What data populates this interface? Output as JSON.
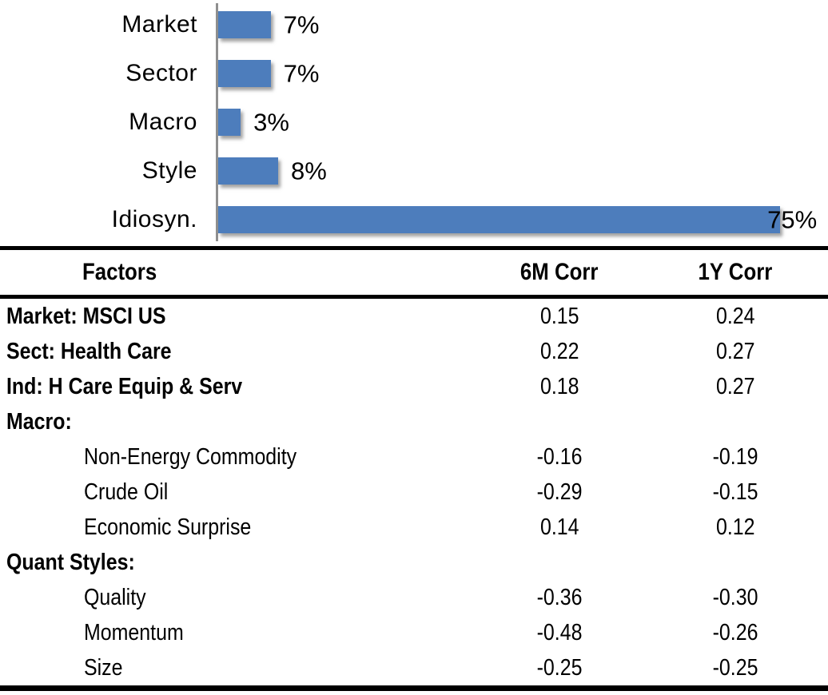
{
  "chart_data": {
    "type": "bar",
    "orientation": "horizontal",
    "title": "",
    "categories": [
      "Market",
      "Sector",
      "Macro",
      "Style",
      "Idiosyn."
    ],
    "values": [
      7,
      7,
      3,
      8,
      75
    ],
    "value_labels": [
      "7%",
      "7%",
      "3%",
      "8%",
      "75%"
    ],
    "unit": "percent",
    "xlim": [
      0,
      80
    ],
    "grid": false,
    "legend": false,
    "bar_color": "#4d7dbc",
    "axis_line_color": "#8f8f8f"
  },
  "table": {
    "headers": [
      "Factors",
      "6M Corr",
      "1Y Corr"
    ],
    "rows": [
      {
        "label": "Market: MSCI US",
        "style": "main",
        "corr_6m": "0.15",
        "corr_1y": "0.24"
      },
      {
        "label": "Sect: Health Care",
        "style": "main",
        "corr_6m": "0.22",
        "corr_1y": "0.27"
      },
      {
        "label": "Ind: H Care Equip & Serv",
        "style": "main",
        "corr_6m": "0.18",
        "corr_1y": "0.27"
      },
      {
        "label": "Macro:",
        "style": "main",
        "corr_6m": "",
        "corr_1y": ""
      },
      {
        "label": "Non-Energy Commodity",
        "style": "sub",
        "corr_6m": "-0.16",
        "corr_1y": "-0.19"
      },
      {
        "label": "Crude Oil",
        "style": "sub",
        "corr_6m": "-0.29",
        "corr_1y": "-0.15"
      },
      {
        "label": "Economic Surprise",
        "style": "sub",
        "corr_6m": "0.14",
        "corr_1y": "0.12"
      },
      {
        "label": "Quant Styles:",
        "style": "main",
        "corr_6m": "",
        "corr_1y": ""
      },
      {
        "label": "Quality",
        "style": "sub",
        "corr_6m": "-0.36",
        "corr_1y": "-0.30"
      },
      {
        "label": "Momentum",
        "style": "sub",
        "corr_6m": "-0.48",
        "corr_1y": "-0.26"
      },
      {
        "label": "Size",
        "style": "sub",
        "corr_6m": "-0.25",
        "corr_1y": "-0.25"
      }
    ]
  }
}
